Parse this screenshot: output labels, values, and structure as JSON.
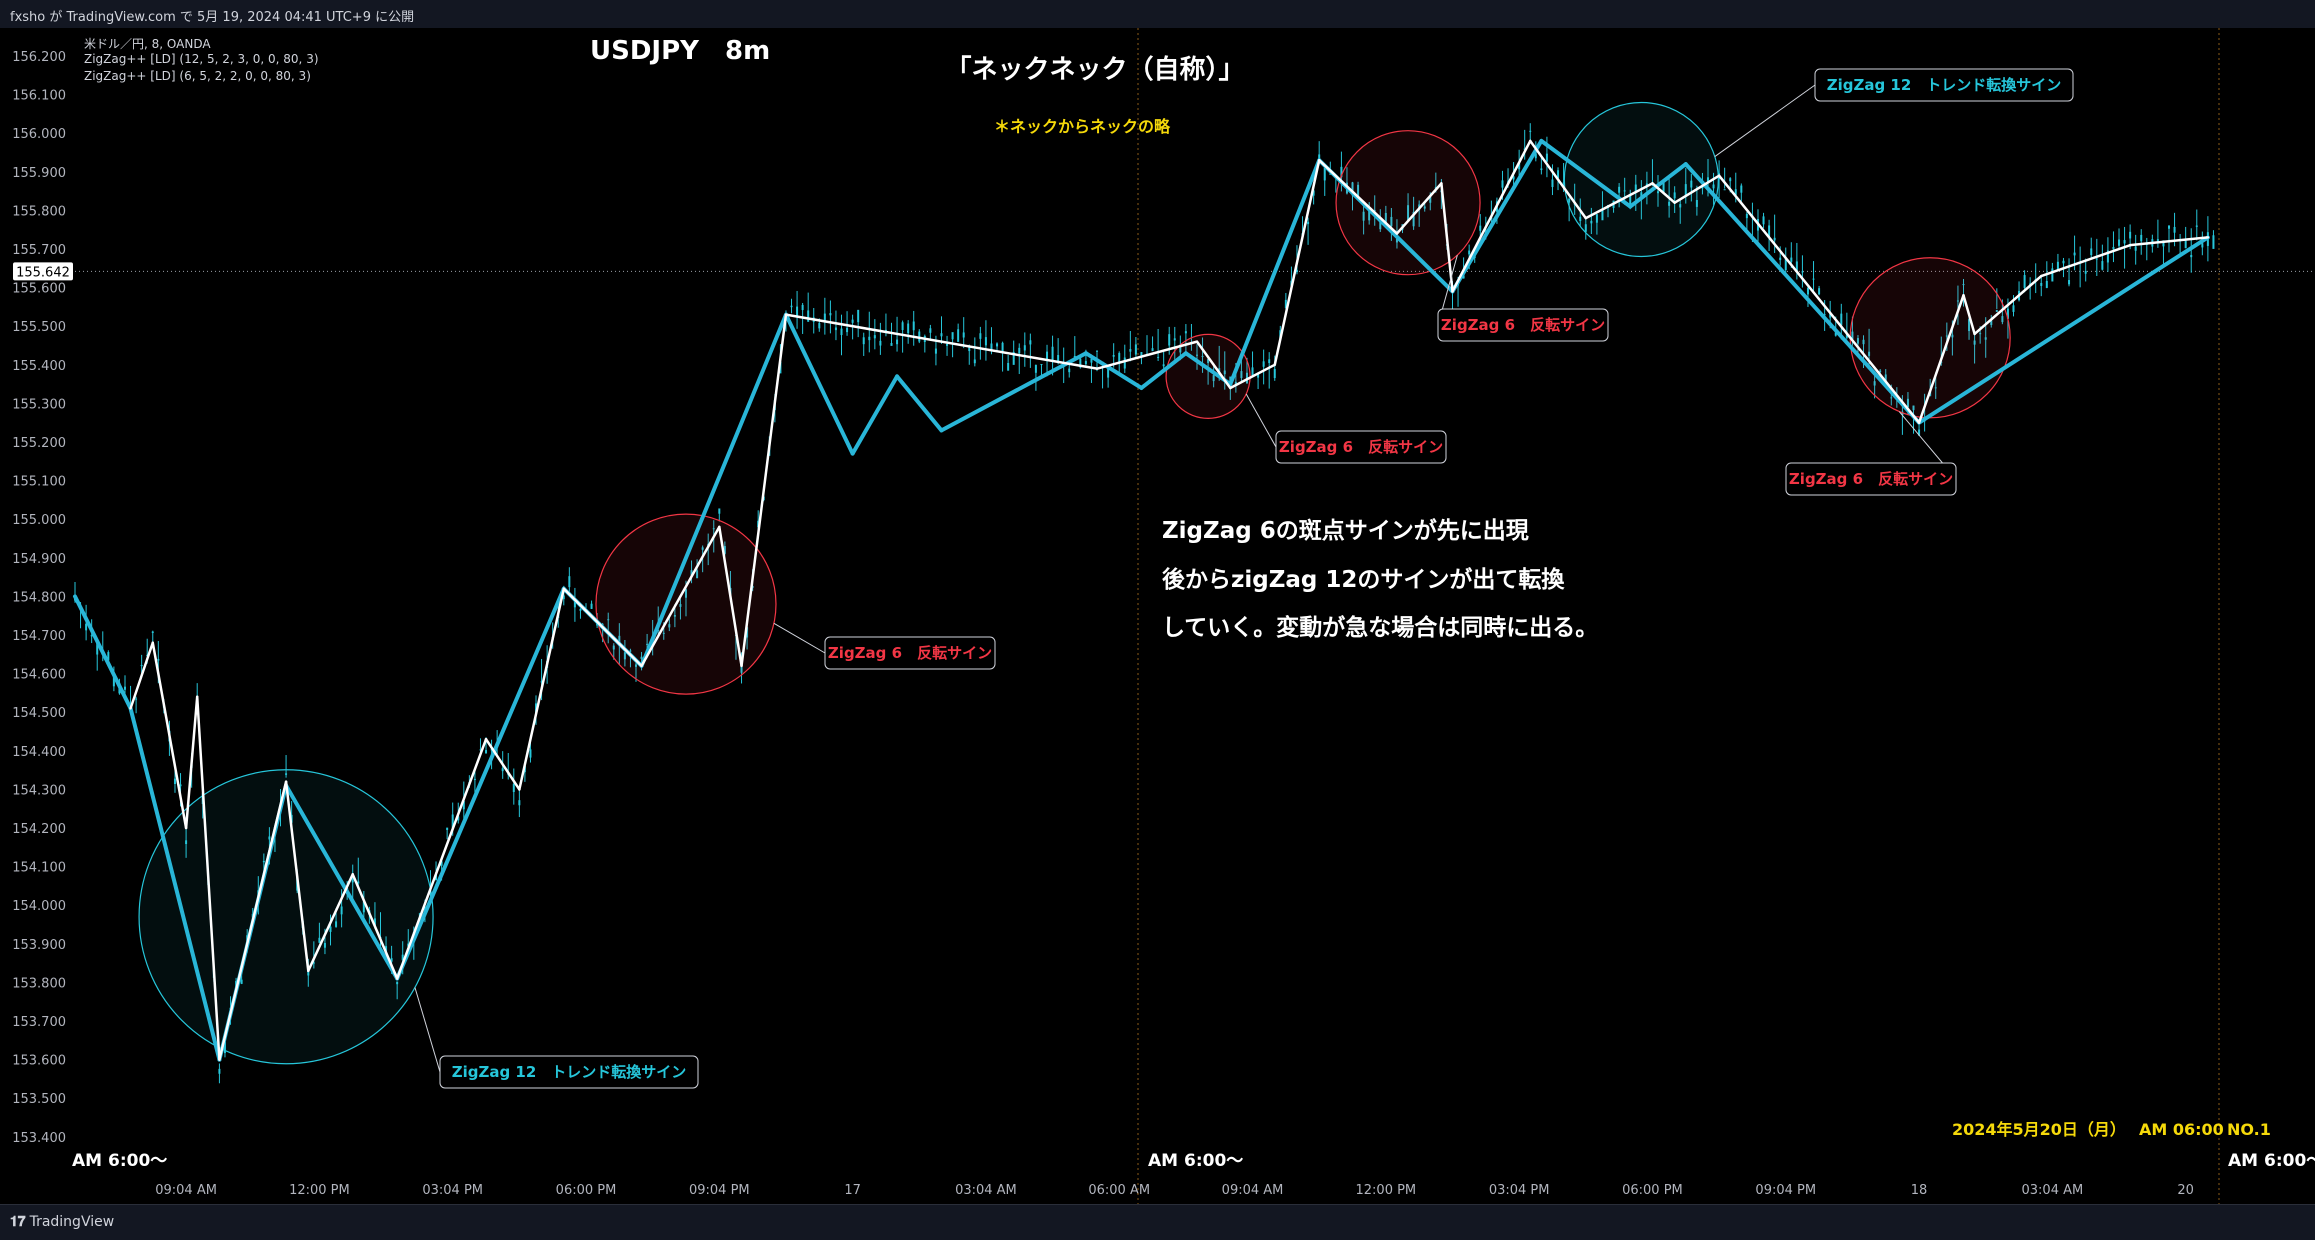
{
  "header": {
    "publish_text": "fxsho が TradingView.com で 5月 19, 2024 04:41 UTC+9 に公開"
  },
  "legend": {
    "symbol_line": "米ドル／円, 8, OANDA",
    "indicator1": "ZigZag++ [LD] (12, 5, 2, 3, 0, 0, 80, 3)",
    "indicator2": "ZigZag++ [LD] (6, 5, 2, 2, 0, 0, 80, 3)"
  },
  "titles": {
    "symbol_title": "USDJPY　8m",
    "main_title": "「ネックネック（自称）」",
    "subtitle": "＊ネックからネックの略"
  },
  "notes": {
    "line1": "ZigZag 6の斑点サインが先に出現",
    "line2": "後からzigZag 12のサインが出て転換",
    "line3": "していく。変動が急な場合は同時に出る。"
  },
  "callouts": {
    "zz12_bottom": "ZigZag 12　トレンド転換サイン",
    "zz12_top": "ZigZag 12　トレンド転換サイン",
    "zz6_a": "ZigZag 6　反転サイン",
    "zz6_b": "ZigZag 6　反転サイン",
    "zz6_c": "ZigZag 6　反転サイン",
    "zz6_d": "ZigZag 6　反転サイン"
  },
  "session_labels": {
    "s1": "AM 6:00〜",
    "s2": "AM 6:00〜",
    "s3": "AM 6:00〜"
  },
  "footer_note": {
    "date": "2024年5月20日（月）",
    "time": "AM 06:00",
    "number": "NO.1"
  },
  "footer": {
    "brand": "TradingView"
  },
  "colors": {
    "background": "#000000",
    "candle": "#26c6da",
    "zigzag12": "#29b6d8",
    "zigzag6": "#ffffff",
    "bear_segment": "#ef5350",
    "callout_cyan": "#26c6da",
    "callout_red": "#f23645",
    "note_yellow": "#f5d90a",
    "price_label_bg": "#ffffff"
  },
  "chart_data": {
    "type": "line",
    "title": "USDJPY　8m",
    "y_axis": {
      "ticks": [
        "156.200",
        "156.100",
        "156.000",
        "155.900",
        "155.800",
        "155.700",
        "155.600",
        "155.500",
        "155.400",
        "155.300",
        "155.200",
        "155.100",
        "155.000",
        "154.900",
        "154.800",
        "154.700",
        "154.600",
        "154.500",
        "154.400",
        "154.300",
        "154.200",
        "154.100",
        "154.000",
        "153.900",
        "153.800",
        "153.700",
        "153.600",
        "153.500",
        "153.400"
      ],
      "ylim": [
        153.35,
        156.25
      ],
      "current_price": "155.642"
    },
    "x_axis": {
      "ticks": [
        "09:04 AM",
        "12:00 PM",
        "03:04 PM",
        "06:00 PM",
        "09:04 PM",
        "17",
        "03:04 AM",
        "06:00 AM",
        "09:04 AM",
        "12:00 PM",
        "03:04 PM",
        "06:00 PM",
        "09:04 PM",
        "18",
        "03:04 AM",
        "20"
      ],
      "tick_index": [
        10,
        22,
        34,
        46,
        58,
        70,
        82,
        94,
        106,
        118,
        130,
        142,
        154,
        166,
        178,
        190
      ],
      "range": [
        0,
        193
      ]
    },
    "series": [
      {
        "name": "ZigZag 12",
        "points": [
          [
            0,
            154.8
          ],
          [
            5,
            154.51
          ],
          [
            13,
            153.6
          ],
          [
            19,
            154.31
          ],
          [
            29,
            153.81
          ],
          [
            44,
            154.82
          ],
          [
            51,
            154.62
          ],
          [
            64,
            155.53
          ],
          [
            70,
            155.17
          ],
          [
            74,
            155.37
          ],
          [
            78,
            155.23
          ],
          [
            91,
            155.43
          ],
          [
            96,
            155.34
          ],
          [
            100,
            155.43
          ],
          [
            104,
            155.35
          ],
          [
            112,
            155.93
          ],
          [
            124,
            155.59
          ],
          [
            132,
            155.98
          ],
          [
            140,
            155.81
          ],
          [
            145,
            155.92
          ],
          [
            166,
            155.25
          ],
          [
            192,
            155.73
          ]
        ]
      },
      {
        "name": "ZigZag 6",
        "points": [
          [
            5,
            154.51
          ],
          [
            7,
            154.68
          ],
          [
            10,
            154.2
          ],
          [
            11,
            154.54
          ],
          [
            13,
            153.6
          ],
          [
            19,
            154.32
          ],
          [
            21,
            153.83
          ],
          [
            25,
            154.08
          ],
          [
            29,
            153.81
          ],
          [
            37,
            154.43
          ],
          [
            40,
            154.3
          ],
          [
            44,
            154.82
          ],
          [
            51,
            154.62
          ],
          [
            58,
            154.98
          ],
          [
            60,
            154.62
          ],
          [
            64,
            155.53
          ],
          [
            92,
            155.39
          ],
          [
            101,
            155.46
          ],
          [
            104,
            155.34
          ],
          [
            108,
            155.4
          ],
          [
            112,
            155.93
          ],
          [
            119,
            155.74
          ],
          [
            123,
            155.87
          ],
          [
            124,
            155.59
          ],
          [
            131,
            155.98
          ],
          [
            136,
            155.78
          ],
          [
            142,
            155.87
          ],
          [
            144,
            155.82
          ],
          [
            148,
            155.89
          ],
          [
            166,
            155.25
          ],
          [
            170,
            155.58
          ],
          [
            171,
            155.48
          ],
          [
            177,
            155.63
          ],
          [
            185,
            155.71
          ],
          [
            192,
            155.73
          ]
        ]
      }
    ],
    "annotations": [
      {
        "text": "ZigZag 12　トレンド転換サイン",
        "x": 19,
        "y": 153.97
      },
      {
        "text": "ZigZag 6　反転サイン",
        "x": 55,
        "y": 154.78
      },
      {
        "text": "ZigZag 6　反転サイン",
        "x": 102,
        "y": 155.37
      },
      {
        "text": "ZigZag 6　反転サイン",
        "x": 120,
        "y": 155.82
      },
      {
        "text": "ZigZag 12　トレンド転換サイン",
        "x": 141,
        "y": 155.88
      },
      {
        "text": "ZigZag 6　反転サイン",
        "x": 167,
        "y": 155.47
      }
    ],
    "grid": false,
    "legend": "top-left"
  }
}
